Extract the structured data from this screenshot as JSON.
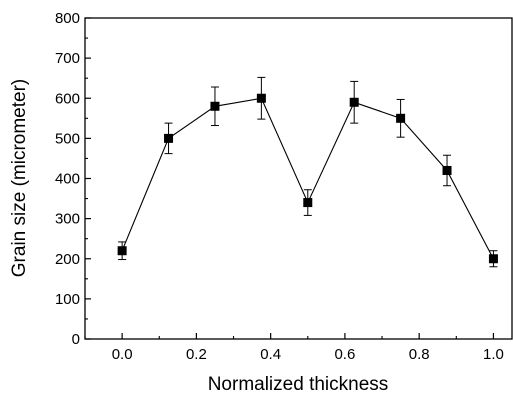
{
  "chart_data": {
    "type": "scatter",
    "xlabel": "Normalized thickness",
    "ylabel": "Grain size (micrometer)",
    "xlim": [
      -0.1,
      1.05
    ],
    "ylim": [
      0,
      800
    ],
    "xticks": [
      "0.0",
      "0.2",
      "0.4",
      "0.6",
      "0.8",
      "1.0"
    ],
    "xtick_values": [
      0.0,
      0.2,
      0.4,
      0.6,
      0.8,
      1.0
    ],
    "yticks": [
      "0",
      "100",
      "200",
      "300",
      "400",
      "500",
      "600",
      "700",
      "800"
    ],
    "ytick_values": [
      0,
      100,
      200,
      300,
      400,
      500,
      600,
      700,
      800
    ],
    "grid": false,
    "marker": "square",
    "connected": true,
    "series": [
      {
        "x": [
          0.0,
          0.125,
          0.25,
          0.375,
          0.5,
          0.625,
          0.75,
          0.875,
          1.0
        ],
        "y": [
          220,
          500,
          580,
          600,
          340,
          590,
          550,
          420,
          200
        ],
        "error": [
          22,
          38,
          48,
          52,
          32,
          52,
          47,
          38,
          20
        ]
      }
    ],
    "color": "#000000"
  }
}
